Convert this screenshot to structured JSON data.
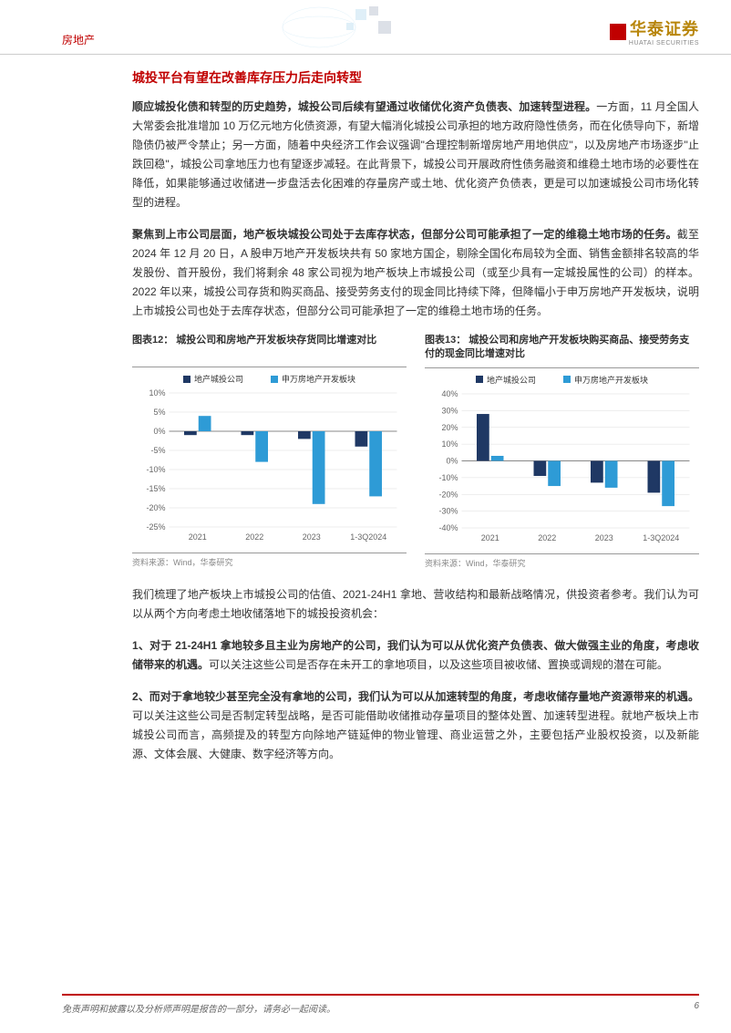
{
  "header": {
    "category": "房地产",
    "logo_cn": "华泰证券",
    "logo_en": "HUATAI SECURITIES"
  },
  "section_title": "城投平台有望在改善库存压力后走向转型",
  "para1_bold": "顺应城投化债和转型的历史趋势，城投公司后续有望通过收储优化资产负债表、加速转型进程。",
  "para1_rest": "一方面，11 月全国人大常委会批准增加 10 万亿元地方化债资源，有望大幅消化城投公司承担的地方政府隐性债务，而在化债导向下，新增隐债仍被严令禁止；另一方面，随着中央经济工作会议强调\"合理控制新增房地产用地供应\"，以及房地产市场逐步\"止跌回稳\"，城投公司拿地压力也有望逐步减轻。在此背景下，城投公司开展政府性债务融资和维稳土地市场的必要性在降低，如果能够通过收储进一步盘活去化困难的存量房产或土地、优化资产负债表，更是可以加速城投公司市场化转型的进程。",
  "para2_bold": "聚焦到上市公司层面，地产板块城投公司处于去库存状态，但部分公司可能承担了一定的维稳土地市场的任务。",
  "para2_rest": "截至 2024 年 12 月 20 日，A 股申万地产开发板块共有 50 家地方国企，剔除全国化布局较为全面、销售金额排名较高的华发股份、首开股份，我们将剩余 48 家公司视为地产板块上市城投公司（或至少具有一定城投属性的公司）的样本。2022 年以来，城投公司存货和购买商品、接受劳务支付的现金同比持续下降，但降幅小于申万房地产开发板块，说明上市城投公司也处于去库存状态，但部分公司可能承担了一定的维稳土地市场的任务。",
  "chart12": {
    "title": "图表12： 城投公司和房地产开发板块存货同比增速对比",
    "type": "bar",
    "legend": [
      "地产城投公司",
      "申万房地产开发板块"
    ],
    "colors": [
      "#1f3864",
      "#2e9bd6"
    ],
    "categories": [
      "2021",
      "2022",
      "2023",
      "1-3Q2024"
    ],
    "series1": [
      -1,
      -1,
      -2,
      -4
    ],
    "series2": [
      4,
      -8,
      -19,
      -17
    ],
    "ylim": [
      -25,
      10
    ],
    "ytick_step": 5,
    "y_format": "percent",
    "grid_color": "#dddddd",
    "background_color": "#ffffff",
    "source": "资料来源：Wind，华泰研究"
  },
  "chart13": {
    "title": "图表13： 城投公司和房地产开发板块购买商品、接受劳务支付的现金同比增速对比",
    "type": "bar",
    "legend": [
      "地产城投公司",
      "申万房地产开发板块"
    ],
    "colors": [
      "#1f3864",
      "#2e9bd6"
    ],
    "categories": [
      "2021",
      "2022",
      "2023",
      "1-3Q2024"
    ],
    "series1": [
      28,
      -9,
      -13,
      -19
    ],
    "series2": [
      3,
      -15,
      -16,
      -27
    ],
    "ylim": [
      -40,
      40
    ],
    "ytick_step": 10,
    "y_format": "percent",
    "grid_color": "#dddddd",
    "background_color": "#ffffff",
    "source": "资料来源：Wind，华泰研究"
  },
  "para3": "我们梳理了地产板块上市城投公司的估值、2021-24H1 拿地、营收结构和最新战略情况，供投资者参考。我们认为可以从两个方向考虑土地收储落地下的城投投资机会：",
  "para4_bold": "1、对于 21-24H1 拿地较多且主业为房地产的公司，我们认为可以从优化资产负债表、做大做强主业的角度，考虑收储带来的机遇。",
  "para4_rest": "可以关注这些公司是否存在未开工的拿地项目，以及这些项目被收储、置换或调规的潜在可能。",
  "para5_bold": "2、而对于拿地较少甚至完全没有拿地的公司，我们认为可以从加速转型的角度，考虑收储存量地产资源带来的机遇。",
  "para5_rest": "可以关注这些公司是否制定转型战略，是否可能借助收储推动存量项目的整体处置、加速转型进程。就地产板块上市城投公司而言，高频提及的转型方向除地产链延伸的物业管理、商业运营之外，主要包括产业股权投资，以及新能源、文体会展、大健康、数字经济等方向。",
  "footer": {
    "disclaimer": "免责声明和披露以及分析师声明是报告的一部分，请务必一起阅读。",
    "page": "6"
  }
}
